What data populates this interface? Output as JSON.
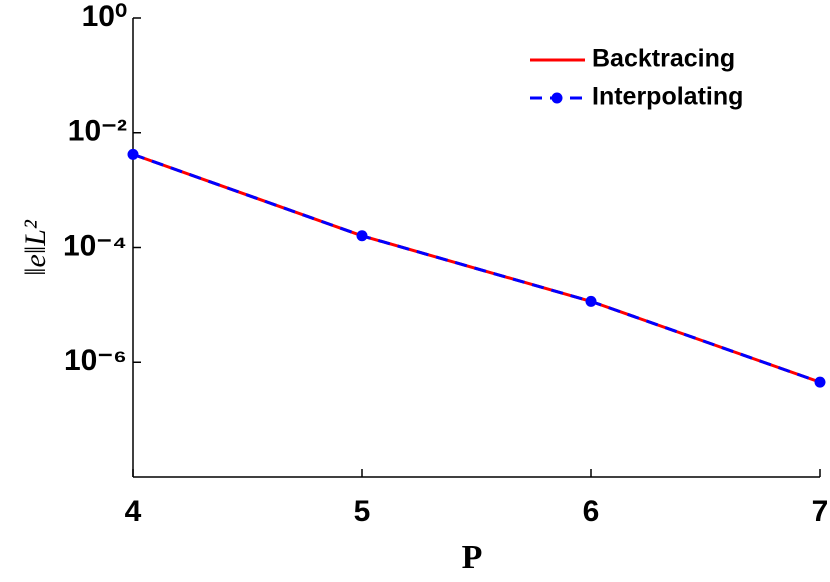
{
  "chart_data": {
    "type": "line",
    "x_label": "P",
    "y_label": "‖e‖L²",
    "x": [
      4,
      5,
      6,
      7
    ],
    "series": [
      {
        "name": "Backtracing",
        "color": "#ff0000",
        "values": [
          0.0042,
          0.00016,
          1.15e-05,
          4.5e-07
        ]
      },
      {
        "name": "Interpolating",
        "color": "#0000ff",
        "values": [
          0.0042,
          0.00016,
          1.15e-05,
          4.5e-07
        ]
      }
    ],
    "xlim": [
      4,
      7
    ],
    "xticks": [
      4,
      5,
      6,
      7
    ],
    "ylim": [
      1e-08,
      1
    ],
    "log_y": true,
    "yticks": [
      {
        "value": 1,
        "label": "10⁰"
      },
      {
        "value": 0.01,
        "label": "10⁻²"
      },
      {
        "value": 0.0001,
        "label": "10⁻⁴"
      },
      {
        "value": 1e-06,
        "label": "10⁻⁶"
      }
    ],
    "legend": "top-right"
  }
}
